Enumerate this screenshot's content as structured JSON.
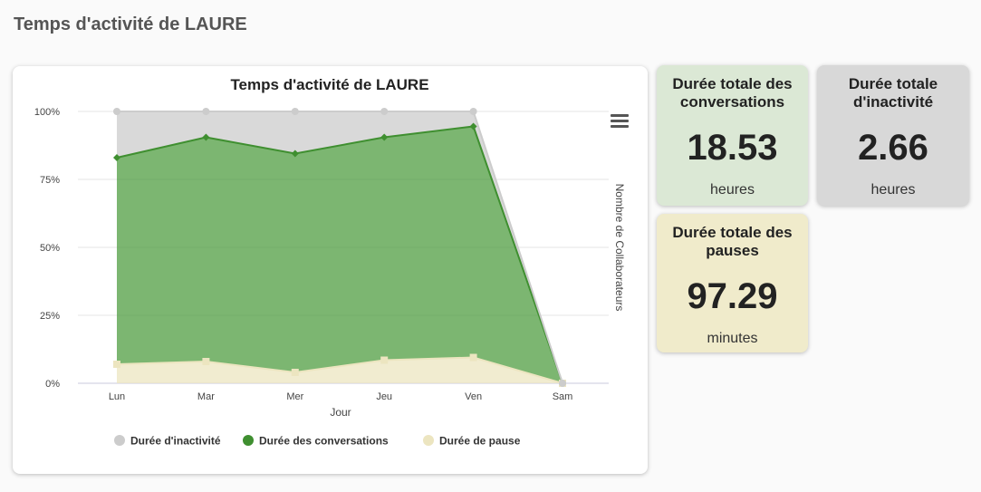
{
  "page": {
    "title": "Temps d'activité de LAURE"
  },
  "stats": [
    {
      "label": "Durée totale des conversations",
      "value": "18.53",
      "unit": "heures",
      "color": "#dbe8d5"
    },
    {
      "label": "Durée totale d'inactivité",
      "value": "2.66",
      "unit": "heures",
      "color": "#d8d8d8"
    },
    {
      "label": "Durée totale des pauses",
      "value": "97.29",
      "unit": "minutes",
      "color": "#f0ebcb"
    }
  ],
  "chart_data": {
    "type": "area",
    "stacking": "percent",
    "title": "Temps d'activité de LAURE",
    "xlabel": "Jour",
    "ylabel": "Nombre de Collaborateurs",
    "categories": [
      "Lun",
      "Mar",
      "Mer",
      "Jeu",
      "Ven",
      "Sam"
    ],
    "y_ticks": [
      "0%",
      "25%",
      "50%",
      "75%",
      "100%"
    ],
    "ylim": [
      0,
      100
    ],
    "legend_position": "bottom",
    "series": [
      {
        "name": "Durée d'inactivité",
        "color": "#cccccc",
        "values": [
          17,
          9.5,
          15.5,
          9.5,
          5.5,
          0
        ]
      },
      {
        "name": "Durée des conversations",
        "color": "#4a9a3a",
        "values": [
          76,
          82.5,
          80.5,
          82,
          85,
          0
        ]
      },
      {
        "name": "Durée de pause",
        "color": "#ece5c0",
        "values": [
          7,
          8,
          4,
          8.5,
          9.5,
          0
        ]
      }
    ]
  }
}
